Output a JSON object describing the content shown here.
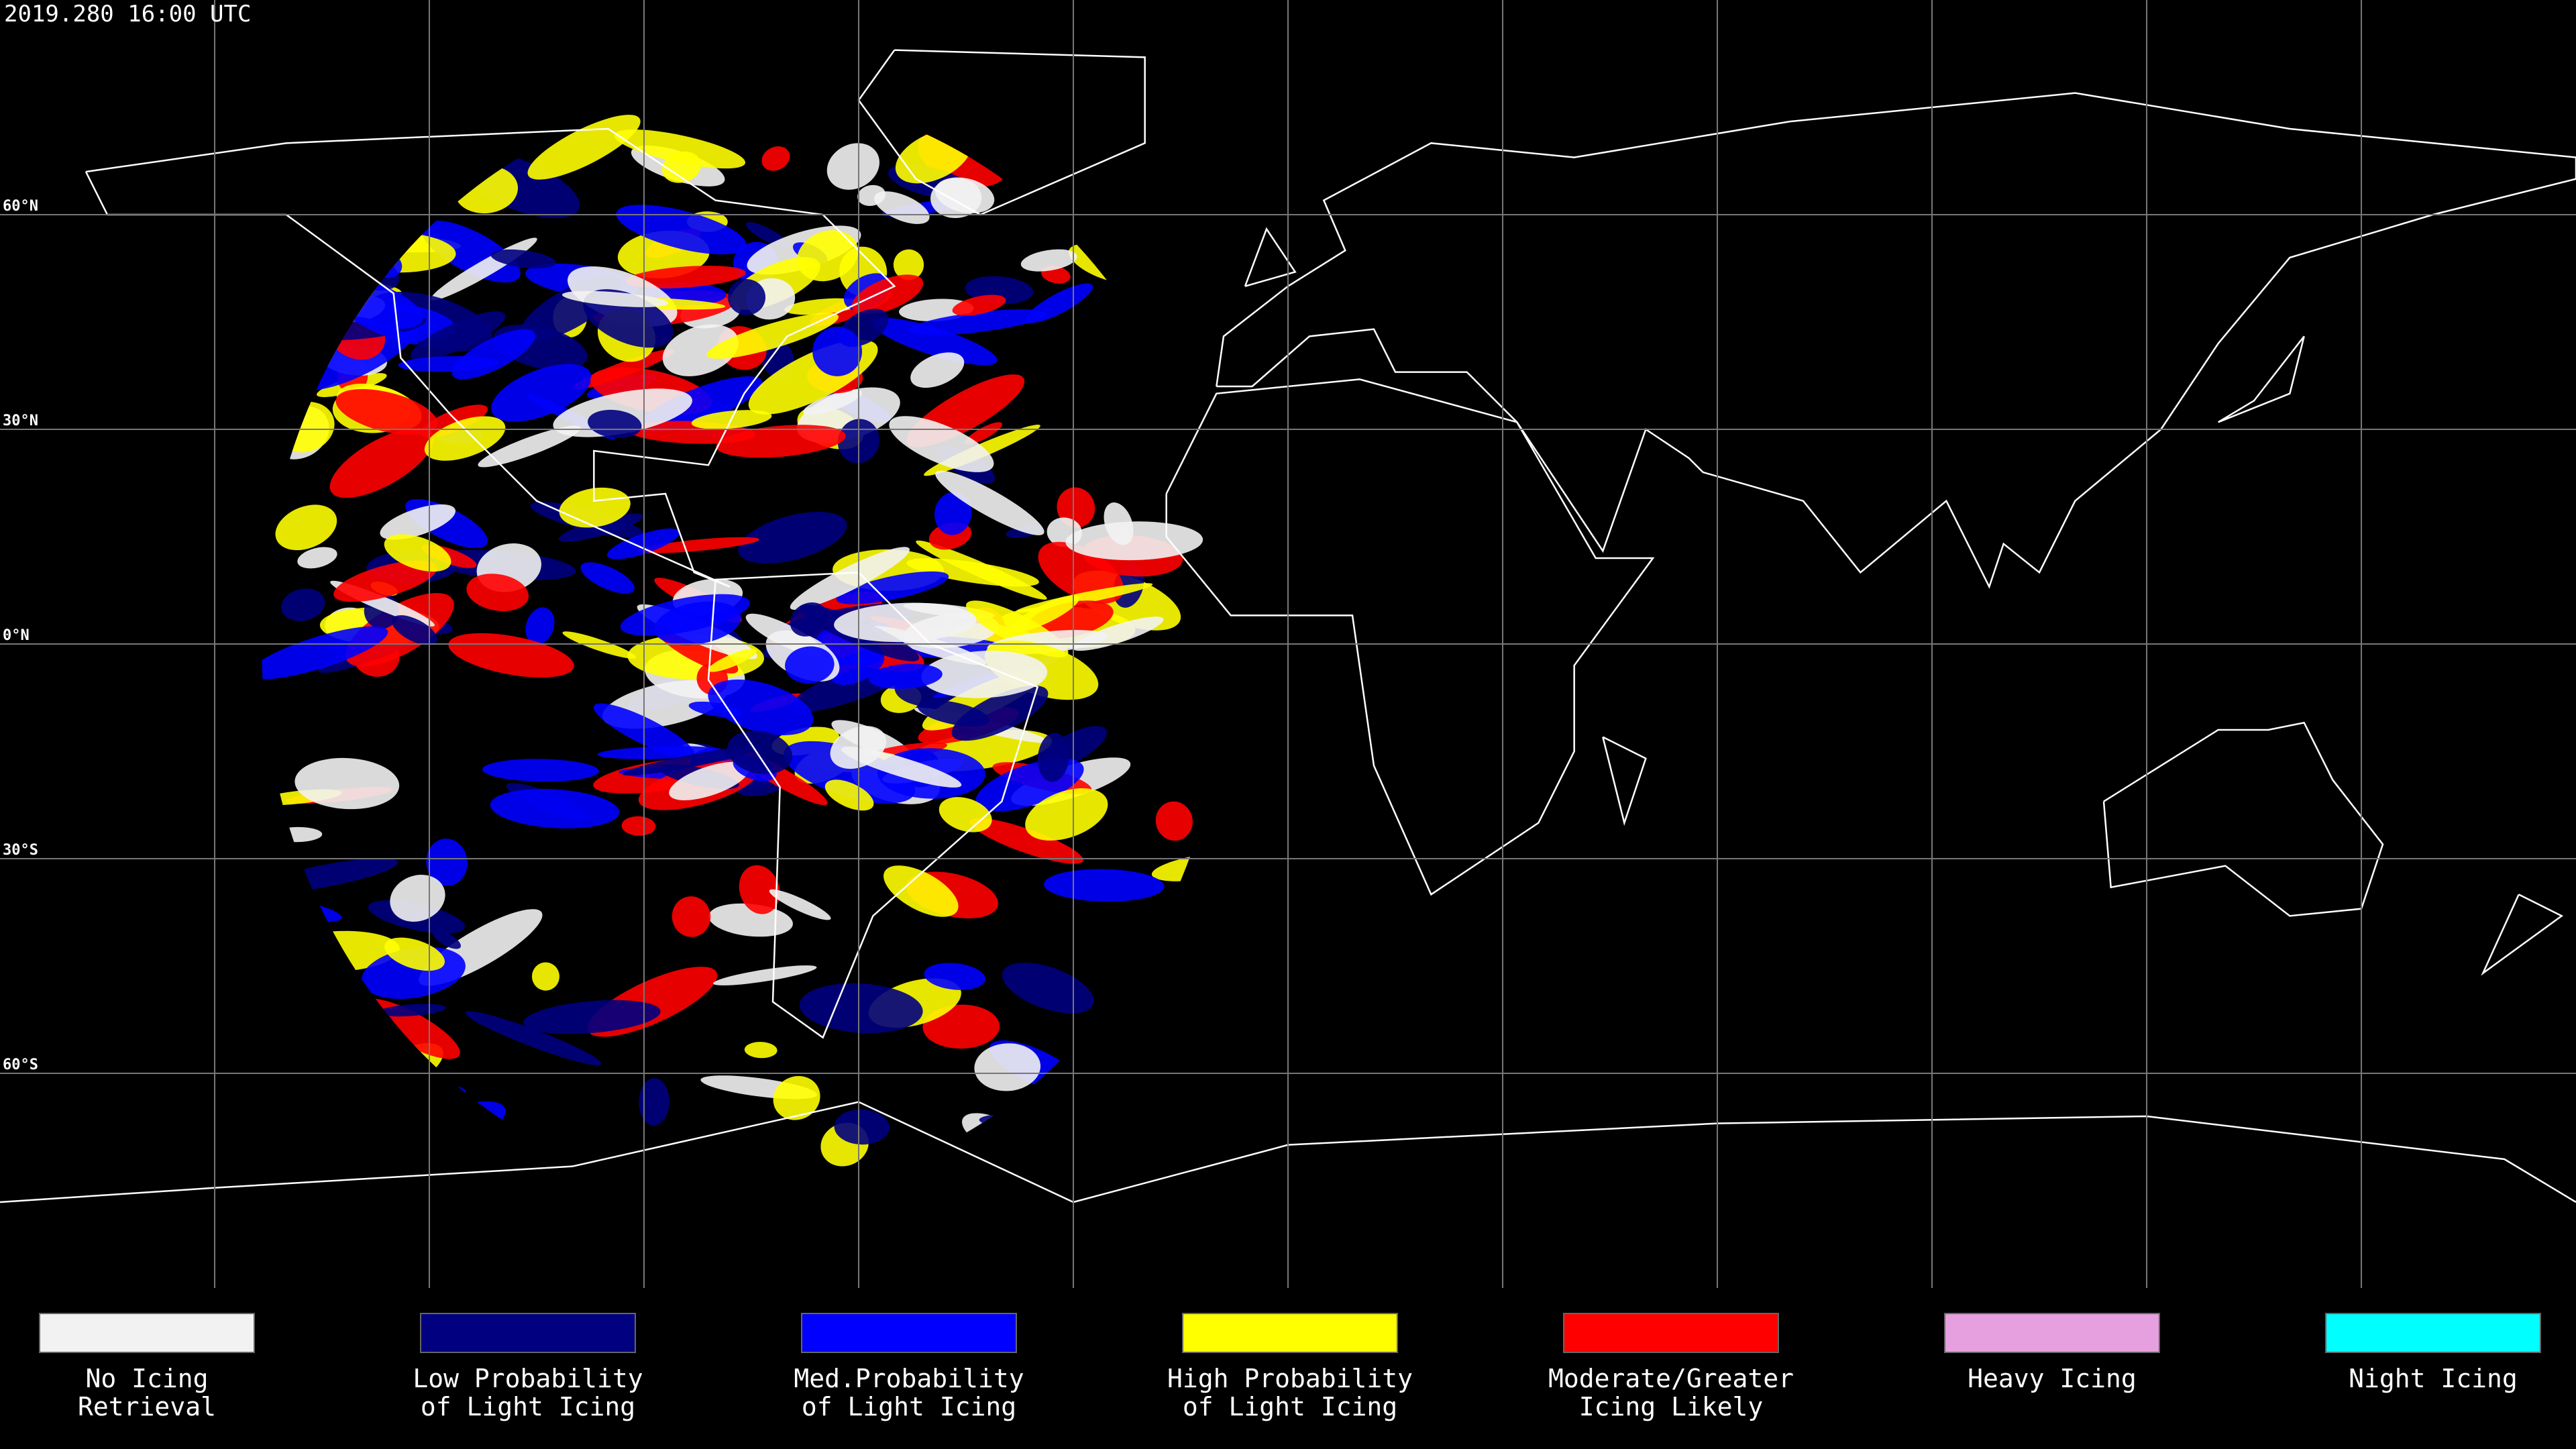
{
  "header": {
    "timestamp": "2019.280 16:00 UTC"
  },
  "lat_labels": [
    "60°N",
    "30°N",
    "0°N",
    "30°S",
    "60°S"
  ],
  "legend": {
    "items": [
      {
        "lines": [
          "No Icing",
          "Retrieval"
        ],
        "color": "#f2f2f2"
      },
      {
        "lines": [
          "Low Probability",
          "of Light Icing"
        ],
        "color": "#000080"
      },
      {
        "lines": [
          "Med.Probability",
          "of Light Icing"
        ],
        "color": "#0000ff"
      },
      {
        "lines": [
          "High Probability",
          "of Light Icing"
        ],
        "color": "#ffff00"
      },
      {
        "lines": [
          "Moderate/Greater",
          "Icing Likely"
        ],
        "color": "#ff0000"
      },
      {
        "lines": [
          "Heavy Icing"
        ],
        "color": "#e6a0e0"
      },
      {
        "lines": [
          "Night Icing"
        ],
        "color": "#00ffff"
      }
    ]
  }
}
